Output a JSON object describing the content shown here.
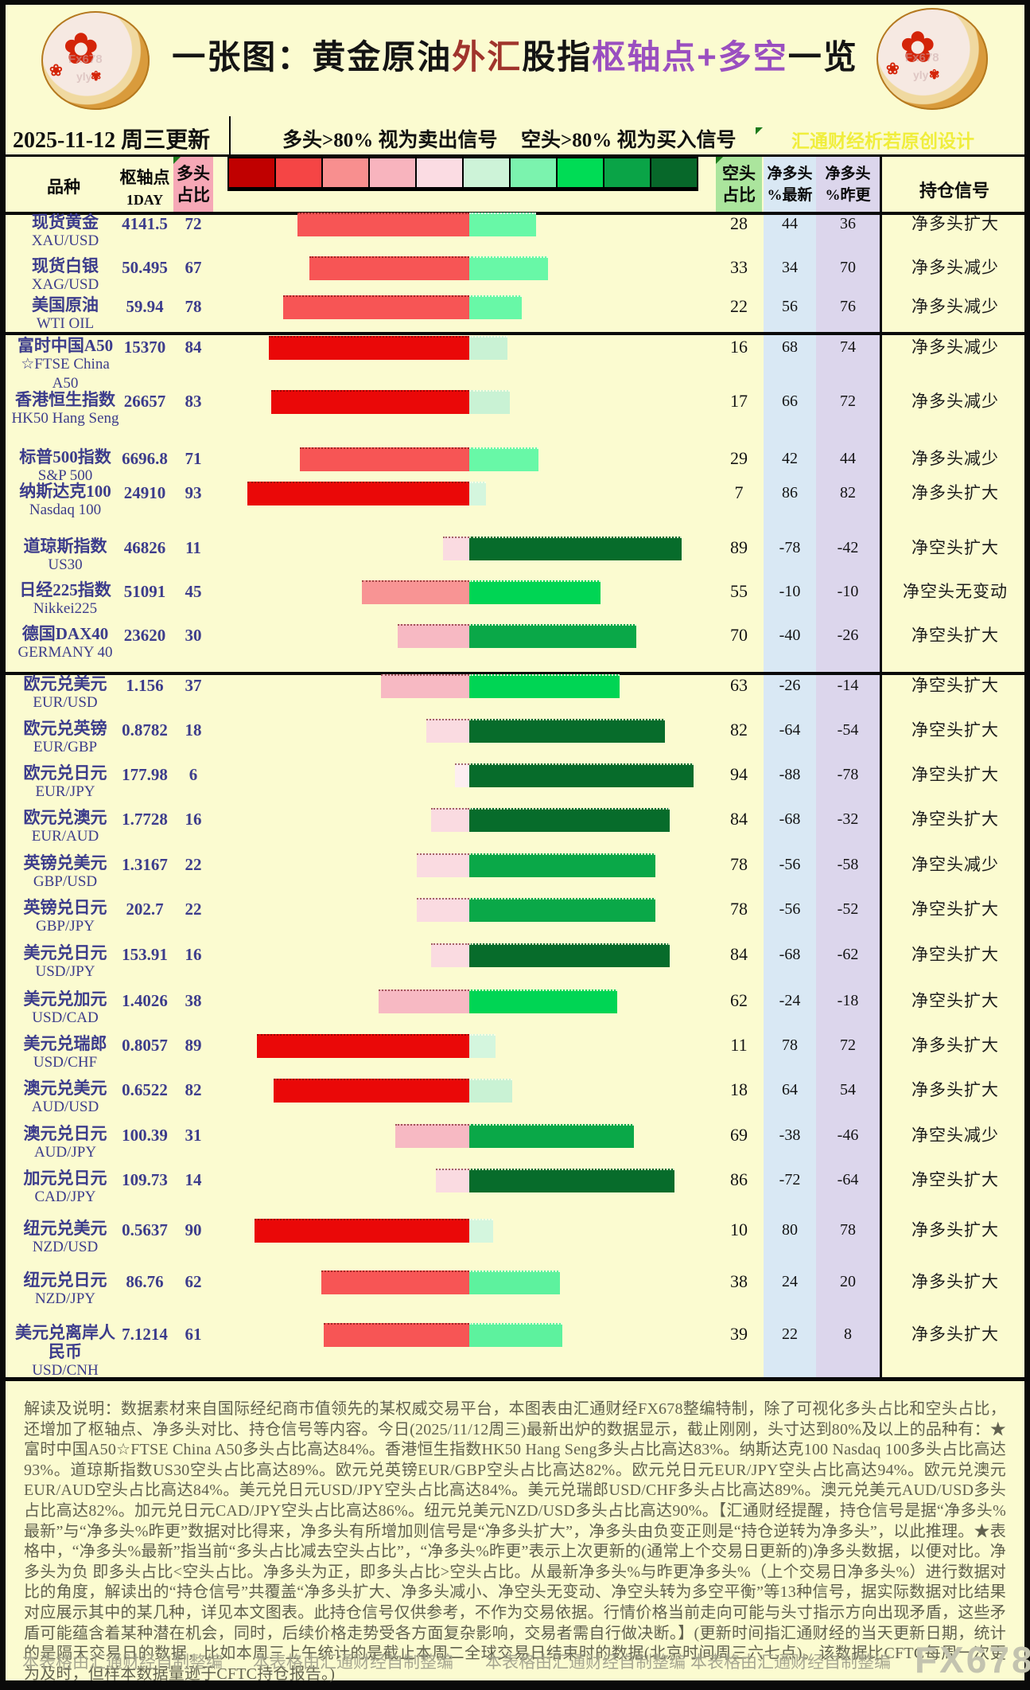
{
  "title_segments": [
    {
      "text": "一张图：黄金原油",
      "color": "#141414"
    },
    {
      "text": "外汇",
      "color": "#a0342c"
    },
    {
      "text": "股指",
      "color": "#141414"
    },
    {
      "text": "枢轴点+多空",
      "color": "#9a4fc0"
    },
    {
      "text": "一览",
      "color": "#141414"
    }
  ],
  "info_bar": {
    "update_date": "2025-11-12 周三更新",
    "long_hint": "多头>80% 视为卖出信号",
    "short_hint": "空头>80% 视为买入信号",
    "watermark": "汇通财经析若原创设计"
  },
  "columns": {
    "variety": "品种",
    "pivot_line1": "枢轴点",
    "pivot_line2": "1DAY",
    "long_line1": "多头",
    "long_line2": "占比",
    "short_line1": "空头",
    "short_line2": "占比",
    "net_new_line1": "净多头",
    "net_new_line2": "%最新",
    "net_prev_line1": "净多头",
    "net_prev_line2": "%昨更",
    "signal": "持仓信号"
  },
  "legend_colors": [
    "#c00000",
    "#f54545",
    "#f88f8f",
    "#f8b4be",
    "#fbdce3",
    "#cdf3d8",
    "#7bf3ae",
    "#00dc55",
    "#0aa447",
    "#07682a"
  ],
  "bar_palette": {
    "red_steps": [
      {
        "min": 80,
        "color": "#ea0808"
      },
      {
        "min": 60,
        "color": "#f75555"
      },
      {
        "min": 40,
        "color": "#f89494"
      },
      {
        "min": 25,
        "color": "#f7b9c3"
      },
      {
        "min": 8,
        "color": "#fadbe1"
      },
      {
        "min": 0,
        "color": "#fdeef1"
      }
    ],
    "green_steps": [
      {
        "min": 80,
        "color": "#076c2b"
      },
      {
        "min": 65,
        "color": "#0aa848"
      },
      {
        "min": 50,
        "color": "#00d554"
      },
      {
        "min": 35,
        "color": "#5df29e"
      },
      {
        "min": 20,
        "color": "#68f8a7"
      },
      {
        "min": 12,
        "color": "#c9f2d4"
      },
      {
        "min": 0,
        "color": "#d4f6de"
      }
    ]
  },
  "chart_data": {
    "type": "bar",
    "title": "一张图：黄金原油外汇股指枢轴点+多空一览",
    "subtitle": "2025-11-12 周三更新",
    "legend_note_long": "多头>80% 视为卖出信号",
    "legend_note_short": "空头>80% 视为买入信号",
    "axis_center_pct": 0,
    "rows": [
      {
        "name": "现货黄金",
        "symbol": "XAU/USD",
        "pivot": "4141.5",
        "long_pct": 72,
        "short_pct": 28,
        "net_latest": 44,
        "net_prev": 36,
        "signal": "净多头扩大"
      },
      {
        "name": "现货白银",
        "symbol": "XAG/USD",
        "pivot": "50.495",
        "long_pct": 67,
        "short_pct": 33,
        "net_latest": 34,
        "net_prev": 70,
        "signal": "净多头减少"
      },
      {
        "name": "美国原油",
        "symbol": "WTI OIL",
        "pivot": "59.94",
        "long_pct": 78,
        "short_pct": 22,
        "net_latest": 56,
        "net_prev": 76,
        "signal": "净多头减少"
      },
      {
        "name": "富时中国A50",
        "symbol": "☆FTSE China A50",
        "pivot": "15370",
        "long_pct": 84,
        "short_pct": 16,
        "net_latest": 68,
        "net_prev": 74,
        "signal": "净多头减少"
      },
      {
        "name": "香港恒生指数",
        "symbol": "HK50 Hang Seng",
        "pivot": "26657",
        "long_pct": 83,
        "short_pct": 17,
        "net_latest": 66,
        "net_prev": 72,
        "signal": "净多头减少"
      },
      {
        "name": "标普500指数",
        "symbol": "S&P 500",
        "pivot": "6696.8",
        "long_pct": 71,
        "short_pct": 29,
        "net_latest": 42,
        "net_prev": 44,
        "signal": "净多头减少"
      },
      {
        "name": "纳斯达克100",
        "symbol": "Nasdaq 100",
        "pivot": "24910",
        "long_pct": 93,
        "short_pct": 7,
        "net_latest": 86,
        "net_prev": 82,
        "signal": "净多头扩大"
      },
      {
        "name": "道琼斯指数",
        "symbol": "US30",
        "pivot": "46826",
        "long_pct": 11,
        "short_pct": 89,
        "net_latest": -78,
        "net_prev": -42,
        "signal": "净空头扩大"
      },
      {
        "name": "日经225指数",
        "symbol": "Nikkei225",
        "pivot": "51091",
        "long_pct": 45,
        "short_pct": 55,
        "net_latest": -10,
        "net_prev": -10,
        "signal": "净空头无变动"
      },
      {
        "name": "德国DAX40",
        "symbol": "GERMANY 40",
        "pivot": "23620",
        "long_pct": 30,
        "short_pct": 70,
        "net_latest": -40,
        "net_prev": -26,
        "signal": "净空头扩大"
      },
      {
        "name": "欧元兑美元",
        "symbol": "EUR/USD",
        "pivot": "1.156",
        "long_pct": 37,
        "short_pct": 63,
        "net_latest": -26,
        "net_prev": -14,
        "signal": "净空头扩大"
      },
      {
        "name": "欧元兑英镑",
        "symbol": "EUR/GBP",
        "pivot": "0.8782",
        "long_pct": 18,
        "short_pct": 82,
        "net_latest": -64,
        "net_prev": -54,
        "signal": "净空头扩大"
      },
      {
        "name": "欧元兑日元",
        "symbol": "EUR/JPY",
        "pivot": "177.98",
        "long_pct": 6,
        "short_pct": 94,
        "net_latest": -88,
        "net_prev": -78,
        "signal": "净空头扩大"
      },
      {
        "name": "欧元兑澳元",
        "symbol": "EUR/AUD",
        "pivot": "1.7728",
        "long_pct": 16,
        "short_pct": 84,
        "net_latest": -68,
        "net_prev": -32,
        "signal": "净空头扩大"
      },
      {
        "name": "英镑兑美元",
        "symbol": "GBP/USD",
        "pivot": "1.3167",
        "long_pct": 22,
        "short_pct": 78,
        "net_latest": -56,
        "net_prev": -58,
        "signal": "净空头减少"
      },
      {
        "name": "英镑兑日元",
        "symbol": "GBP/JPY",
        "pivot": "202.7",
        "long_pct": 22,
        "short_pct": 78,
        "net_latest": -56,
        "net_prev": -52,
        "signal": "净空头扩大"
      },
      {
        "name": "美元兑日元",
        "symbol": "USD/JPY",
        "pivot": "153.91",
        "long_pct": 16,
        "short_pct": 84,
        "net_latest": -68,
        "net_prev": -62,
        "signal": "净空头扩大"
      },
      {
        "name": "美元兑加元",
        "symbol": "USD/CAD",
        "pivot": "1.4026",
        "long_pct": 38,
        "short_pct": 62,
        "net_latest": -24,
        "net_prev": -18,
        "signal": "净空头扩大"
      },
      {
        "name": "美元兑瑞郎",
        "symbol": "USD/CHF",
        "pivot": "0.8057",
        "long_pct": 89,
        "short_pct": 11,
        "net_latest": 78,
        "net_prev": 72,
        "signal": "净多头扩大"
      },
      {
        "name": "澳元兑美元",
        "symbol": "AUD/USD",
        "pivot": "0.6522",
        "long_pct": 82,
        "short_pct": 18,
        "net_latest": 64,
        "net_prev": 54,
        "signal": "净多头扩大"
      },
      {
        "name": "澳元兑日元",
        "symbol": "AUD/JPY",
        "pivot": "100.39",
        "long_pct": 31,
        "short_pct": 69,
        "net_latest": -38,
        "net_prev": -46,
        "signal": "净空头减少"
      },
      {
        "name": "加元兑日元",
        "symbol": "CAD/JPY",
        "pivot": "109.73",
        "long_pct": 14,
        "short_pct": 86,
        "net_latest": -72,
        "net_prev": -64,
        "signal": "净空头扩大"
      },
      {
        "name": "纽元兑美元",
        "symbol": "NZD/USD",
        "pivot": "0.5637",
        "long_pct": 90,
        "short_pct": 10,
        "net_latest": 80,
        "net_prev": 78,
        "signal": "净多头扩大"
      },
      {
        "name": "纽元兑日元",
        "symbol": "NZD/JPY",
        "pivot": "86.76",
        "long_pct": 62,
        "short_pct": 38,
        "net_latest": 24,
        "net_prev": 20,
        "signal": "净多头扩大"
      },
      {
        "name": "美元兑离岸人民币",
        "symbol": "USD/CNH",
        "pivot": "7.1214",
        "long_pct": 61,
        "short_pct": 39,
        "net_latest": 22,
        "net_prev": 8,
        "signal": "净多头扩大"
      }
    ]
  },
  "footer": {
    "text": "解读及说明：数据素材来自国际经纪商市值领先的某权威交易平台，本图表由汇通财经FX678整编特制，除了可视化多头占比和空头占比，还增加了枢轴点、净多头对比、持仓信号等内容。今日(2025/11/12周三)最新出炉的数据显示，截止刚刚，头寸达到80%及以上的品种有：★ 富时中国A50☆FTSE China A50多头占比高达84%。香港恒生指数HK50 Hang Seng多头占比高达83%。纳斯达克100 Nasdaq 100多头占比高达93%。道琼斯指数US30空头占比高达89%。欧元兑英镑EUR/GBP空头占比高达82%。欧元兑日元EUR/JPY空头占比高达94%。欧元兑澳元EUR/AUD空头占比高达84%。美元兑日元USD/JPY空头占比高达84%。美元兑瑞郎USD/CHF多头占比高达89%。澳元兑美元AUD/USD多头占比高达82%。加元兑日元CAD/JPY空头占比高达86%。纽元兑美元NZD/USD多头占比高达90%。【汇通财经提醒，持仓信号是据“净多头%最新”与“净多头%昨更”数据对比得来，净多头有所增加则信号是“净多头扩大”，净多头由负变正则是“持仓逆转为净多头”，以此推理。★表格中，“净多头%最新”指当前“多头占比减去空头占比”，“净多头%昨更”表示上次更新的(通常上个交易日更新的)净多头数据，以便对比。净多头为负 即多头占比<空头占比。净多头为正，即多头占比>空头占比。从最新净多头%与昨更净多头%（上个交易日净多头%）进行数据对比的角度，解读出的“持仓信号”共覆盖“净多头扩大、净多头减小、净空头无变动、净空头转为多空平衡”等13种信号，据实际数据对比结果对应展示其中的某几种，详见本文图表。此持仓信号仅供参考，不作为交易依据。行情价格当前走向可能与头寸指示方向出现矛盾，这些矛盾可能蕴含着某种潜在机会，同时，后续价格走势受各方面复杂影响，交易者需自行做决断。】(更新时间指汇通财经的当天更新日期，统计的是隔天交易日的数据，比如本周三上午统计的是截止本周二全球交易日结束时的数据(北京时间周三六七点)。该数据比CFTC每周一次更为及时，但样本数据量逊于CFTC持仓报告。)",
    "credits": [
      "本表格由汇通财经自制整编",
      "本表格由汇通财经自制整编",
      "本表格由汇通财经自制整编",
      "本表格由汇通财经自制整编"
    ],
    "brand": "FX678"
  }
}
